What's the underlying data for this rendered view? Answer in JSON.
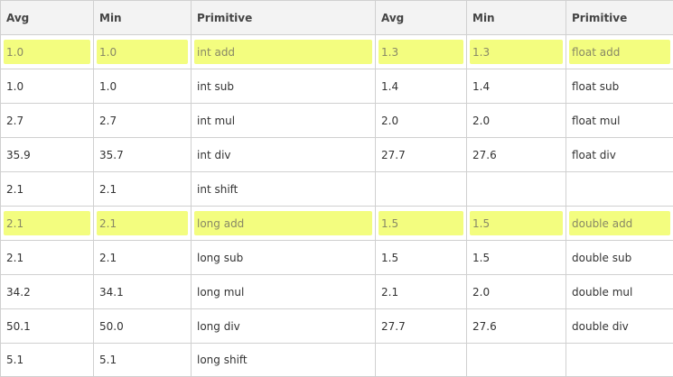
{
  "table": {
    "headers": [
      "Avg",
      "Min",
      "Primitive",
      "Avg",
      "Min",
      "Primitive"
    ],
    "rows": [
      {
        "cells": [
          "1.0",
          "1.0",
          "int add",
          "1.3",
          "1.3",
          "float add"
        ],
        "highlight": true
      },
      {
        "cells": [
          "1.0",
          "1.0",
          "int sub",
          "1.4",
          "1.4",
          "float sub"
        ],
        "highlight": false
      },
      {
        "cells": [
          "2.7",
          "2.7",
          "int mul",
          "2.0",
          "2.0",
          "float mul"
        ],
        "highlight": false
      },
      {
        "cells": [
          "35.9",
          "35.7",
          "int div",
          "27.7",
          "27.6",
          "float div"
        ],
        "highlight": false
      },
      {
        "cells": [
          "2.1",
          "2.1",
          "int shift",
          "",
          "",
          ""
        ],
        "highlight": false
      },
      {
        "cells": [
          "2.1",
          "2.1",
          "long add",
          "1.5",
          "1.5",
          "double add"
        ],
        "highlight": true
      },
      {
        "cells": [
          "2.1",
          "2.1",
          "long sub",
          "1.5",
          "1.5",
          "double sub"
        ],
        "highlight": false
      },
      {
        "cells": [
          "34.2",
          "34.1",
          "long mul",
          "2.1",
          "2.0",
          "double mul"
        ],
        "highlight": false
      },
      {
        "cells": [
          "50.1",
          "50.0",
          "long div",
          "27.7",
          "27.6",
          "double div"
        ],
        "highlight": false
      },
      {
        "cells": [
          "5.1",
          "5.1",
          "long shift",
          "",
          "",
          ""
        ],
        "highlight": false
      }
    ]
  },
  "colors": {
    "highlight": "#f3fd7f",
    "border": "#d0d0d0",
    "header_bg": "#f3f3f3"
  }
}
